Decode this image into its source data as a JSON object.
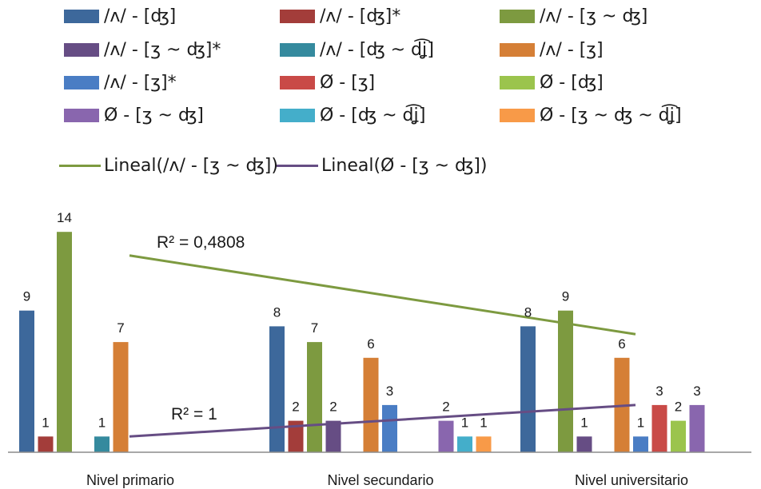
{
  "chart_data": {
    "type": "bar",
    "categories": [
      "Nivel primario",
      "Nivel secundario",
      "Nivel universitario"
    ],
    "series": [
      {
        "name": "/ʌ/ - [ʤ]",
        "color": "#3D689B",
        "values": [
          9,
          8,
          8
        ]
      },
      {
        "name": "/ʌ/ - [ʤ]*",
        "color": "#A33D3A",
        "values": [
          1,
          2,
          null
        ]
      },
      {
        "name": "/ʌ/ - [ʒ ~ ʤ]",
        "color": "#7D9A40",
        "values": [
          14,
          7,
          9
        ]
      },
      {
        "name": "/ʌ/ - [ʒ ~ ʤ]*",
        "color": "#664D84",
        "values": [
          null,
          2,
          1
        ]
      },
      {
        "name": "/ʌ/ - [ʤ ~ d͡ʝ]",
        "color": "#358A9E",
        "values": [
          1,
          null,
          null
        ]
      },
      {
        "name": "/ʌ/ - [ʒ]",
        "color": "#D57F36",
        "values": [
          7,
          6,
          6
        ]
      },
      {
        "name": "/ʌ/ - [ʒ]*",
        "color": "#4A7DC4",
        "values": [
          null,
          3,
          1
        ]
      },
      {
        "name": "Ø - [ʒ]",
        "color": "#C94A47",
        "values": [
          null,
          null,
          3
        ]
      },
      {
        "name": "Ø - [ʤ]",
        "color": "#9BC44D",
        "values": [
          null,
          null,
          2
        ]
      },
      {
        "name": "Ø - [ʒ ~ ʤ]",
        "color": "#8966AE",
        "values": [
          null,
          2,
          3
        ]
      },
      {
        "name": "Ø - [ʤ ~ d͡ʝ]",
        "color": "#44AECA",
        "values": [
          null,
          1,
          null
        ]
      },
      {
        "name": "Ø - [ʒ ~ ʤ ~ d͡ʝ]",
        "color": "#F89A48",
        "values": [
          null,
          1,
          null
        ]
      }
    ],
    "trendlines": [
      {
        "name": "Lineal (/ʌ/ - [ʒ ~ ʤ])",
        "legend_label": "Lineal(/ʌ/ - [ʒ ~ ʤ])",
        "series": "/ʌ/ - [ʒ ~ ʤ]",
        "type": "linear",
        "color": "#7D9A40",
        "r2_label": "R² = 0,4808",
        "y_start": 12.5,
        "y_end": 7.5
      },
      {
        "name": "Lineal (Ø - [ʒ ~ ʤ])",
        "legend_label": "Lineal(Ø - [ʒ ~ ʤ])",
        "series": "Ø - [ʒ ~ ʤ]",
        "type": "linear",
        "color": "#664D84",
        "r2_label": "R² = 1",
        "y_start": 1,
        "y_end": 3
      }
    ],
    "ylim": [
      0,
      14.5
    ],
    "grid": false,
    "legend_position": "top",
    "data_labels": true
  }
}
